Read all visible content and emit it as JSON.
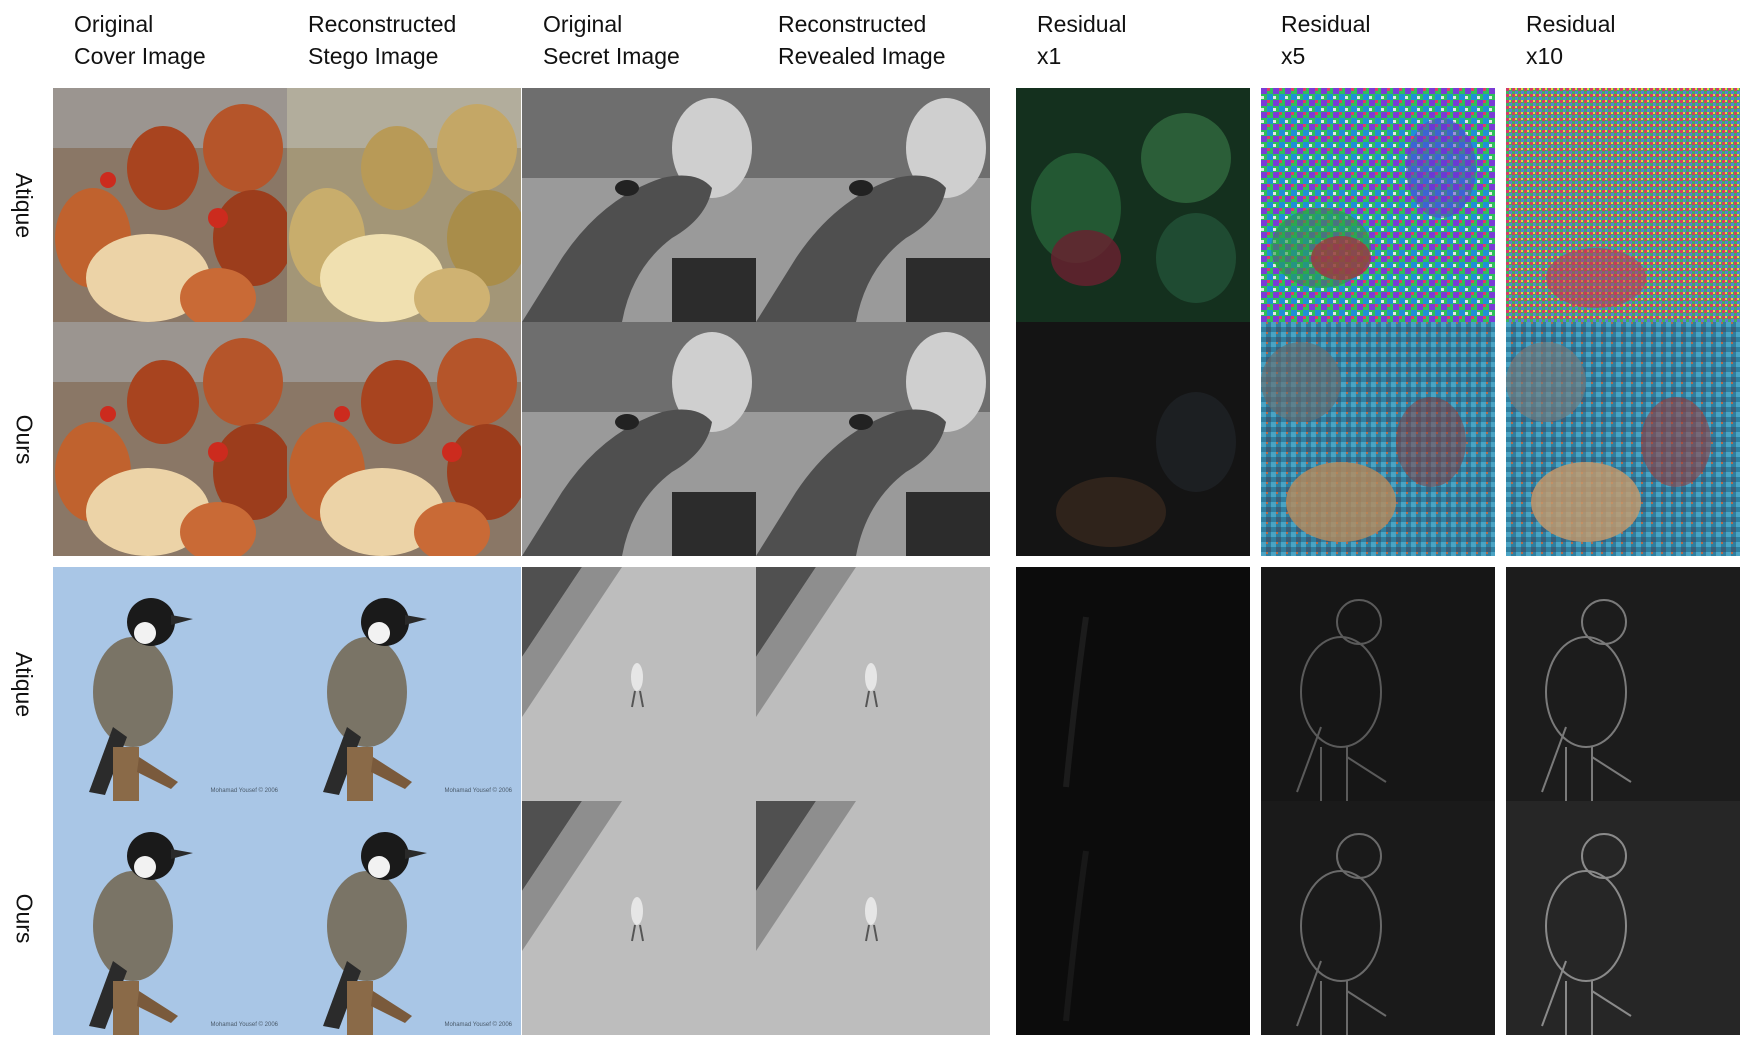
{
  "columns": [
    {
      "line1": "Original",
      "line2": "Cover Image"
    },
    {
      "line1": "Reconstructed",
      "line2": "Stego Image"
    },
    {
      "line1": "Original",
      "line2": "Secret Image"
    },
    {
      "line1": "Reconstructed",
      "line2": "Revealed Image"
    },
    {
      "line1": "Residual",
      "line2": "x1"
    },
    {
      "line1": "Residual",
      "line2": "x5"
    },
    {
      "line1": "Residual",
      "line2": "x10"
    }
  ],
  "rows": [
    {
      "label": "Atique"
    },
    {
      "label": "Ours"
    },
    {
      "label": "Atique"
    },
    {
      "label": "Ours"
    }
  ],
  "watermark": "Mohamad Yousef © 2006",
  "colors": {
    "hen_red": "#a8441f",
    "hen_cream": "#ecd3a7",
    "sky_blue": "#a9c6e6",
    "residual_dark": "#141414"
  }
}
